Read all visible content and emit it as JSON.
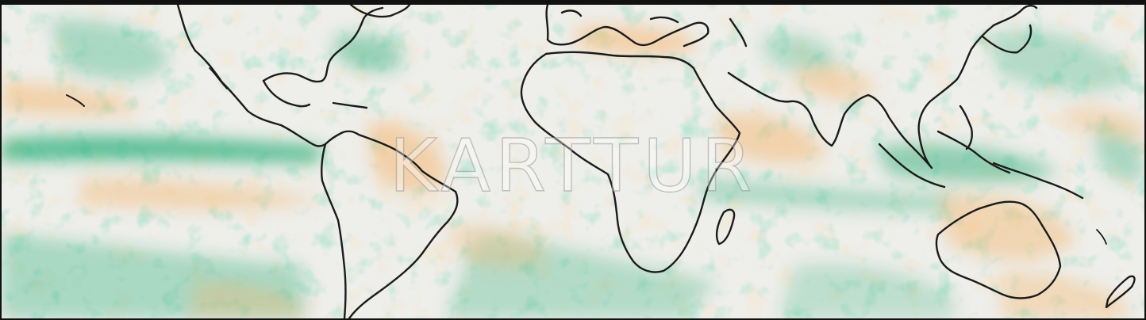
{
  "map": {
    "watermark_text": "KARTTUR",
    "colors": {
      "background": "#eeeeea",
      "wet_anomaly": "#2fb07a",
      "dry_anomaly": "#f5b872",
      "coastline": "#1b1b1b",
      "frame": "#111111"
    }
  }
}
